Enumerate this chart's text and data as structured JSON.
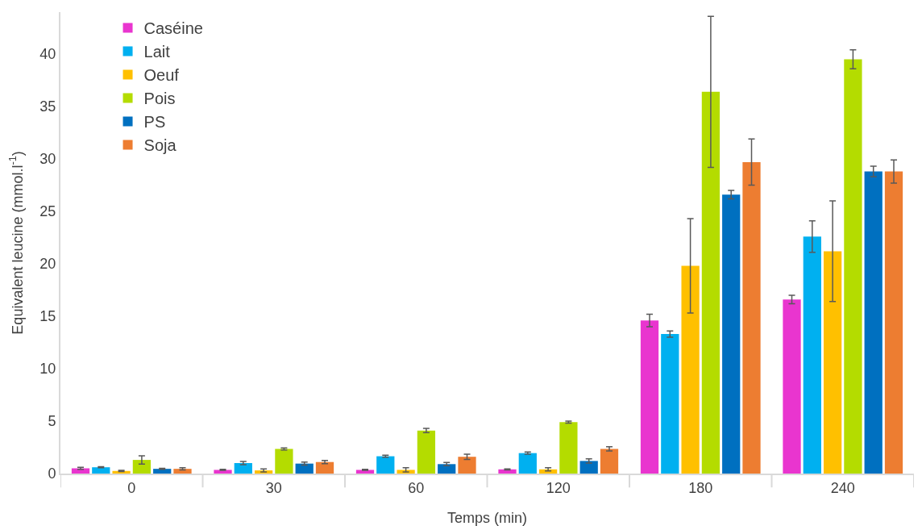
{
  "chart_data": {
    "type": "bar",
    "xlabel": "Temps (min)",
    "ylabel": "Equivalent leucine (mmol.l$^{-1}$)",
    "categories": [
      "0",
      "30",
      "60",
      "120",
      "180",
      "240"
    ],
    "ylim": [
      0,
      44
    ],
    "yticks": [
      0,
      5,
      10,
      15,
      20,
      25,
      30,
      35,
      40
    ],
    "grid": false,
    "legend": "top left",
    "series": [
      {
        "name": "Caséine",
        "color": "#e935cf",
        "values": [
          0.5,
          0.35,
          0.35,
          0.4,
          14.6,
          16.6
        ],
        "errors": [
          0.1,
          0.05,
          0.05,
          0.05,
          0.6,
          0.4
        ]
      },
      {
        "name": "Lait",
        "color": "#00b0f0",
        "values": [
          0.6,
          1.0,
          1.65,
          1.95,
          13.3,
          22.6
        ],
        "errors": [
          0.05,
          0.15,
          0.1,
          0.1,
          0.3,
          1.5
        ]
      },
      {
        "name": "Oeuf",
        "color": "#ffc000",
        "values": [
          0.25,
          0.3,
          0.35,
          0.4,
          19.8,
          21.2
        ],
        "errors": [
          0.05,
          0.15,
          0.2,
          0.15,
          4.5,
          4.8
        ]
      },
      {
        "name": "Pois",
        "color": "#b4dc00",
        "values": [
          1.3,
          2.35,
          4.1,
          4.9,
          36.4,
          39.5
        ],
        "errors": [
          0.4,
          0.1,
          0.2,
          0.1,
          7.2,
          0.9
        ]
      },
      {
        "name": "PS",
        "color": "#0070c0",
        "values": [
          0.45,
          0.95,
          0.9,
          1.2,
          26.6,
          28.8
        ],
        "errors": [
          0.05,
          0.15,
          0.15,
          0.2,
          0.4,
          0.5
        ]
      },
      {
        "name": "Soja",
        "color": "#ed7d31",
        "values": [
          0.45,
          1.1,
          1.6,
          2.35,
          29.7,
          28.8
        ],
        "errors": [
          0.1,
          0.15,
          0.25,
          0.2,
          2.2,
          1.1
        ]
      }
    ]
  }
}
